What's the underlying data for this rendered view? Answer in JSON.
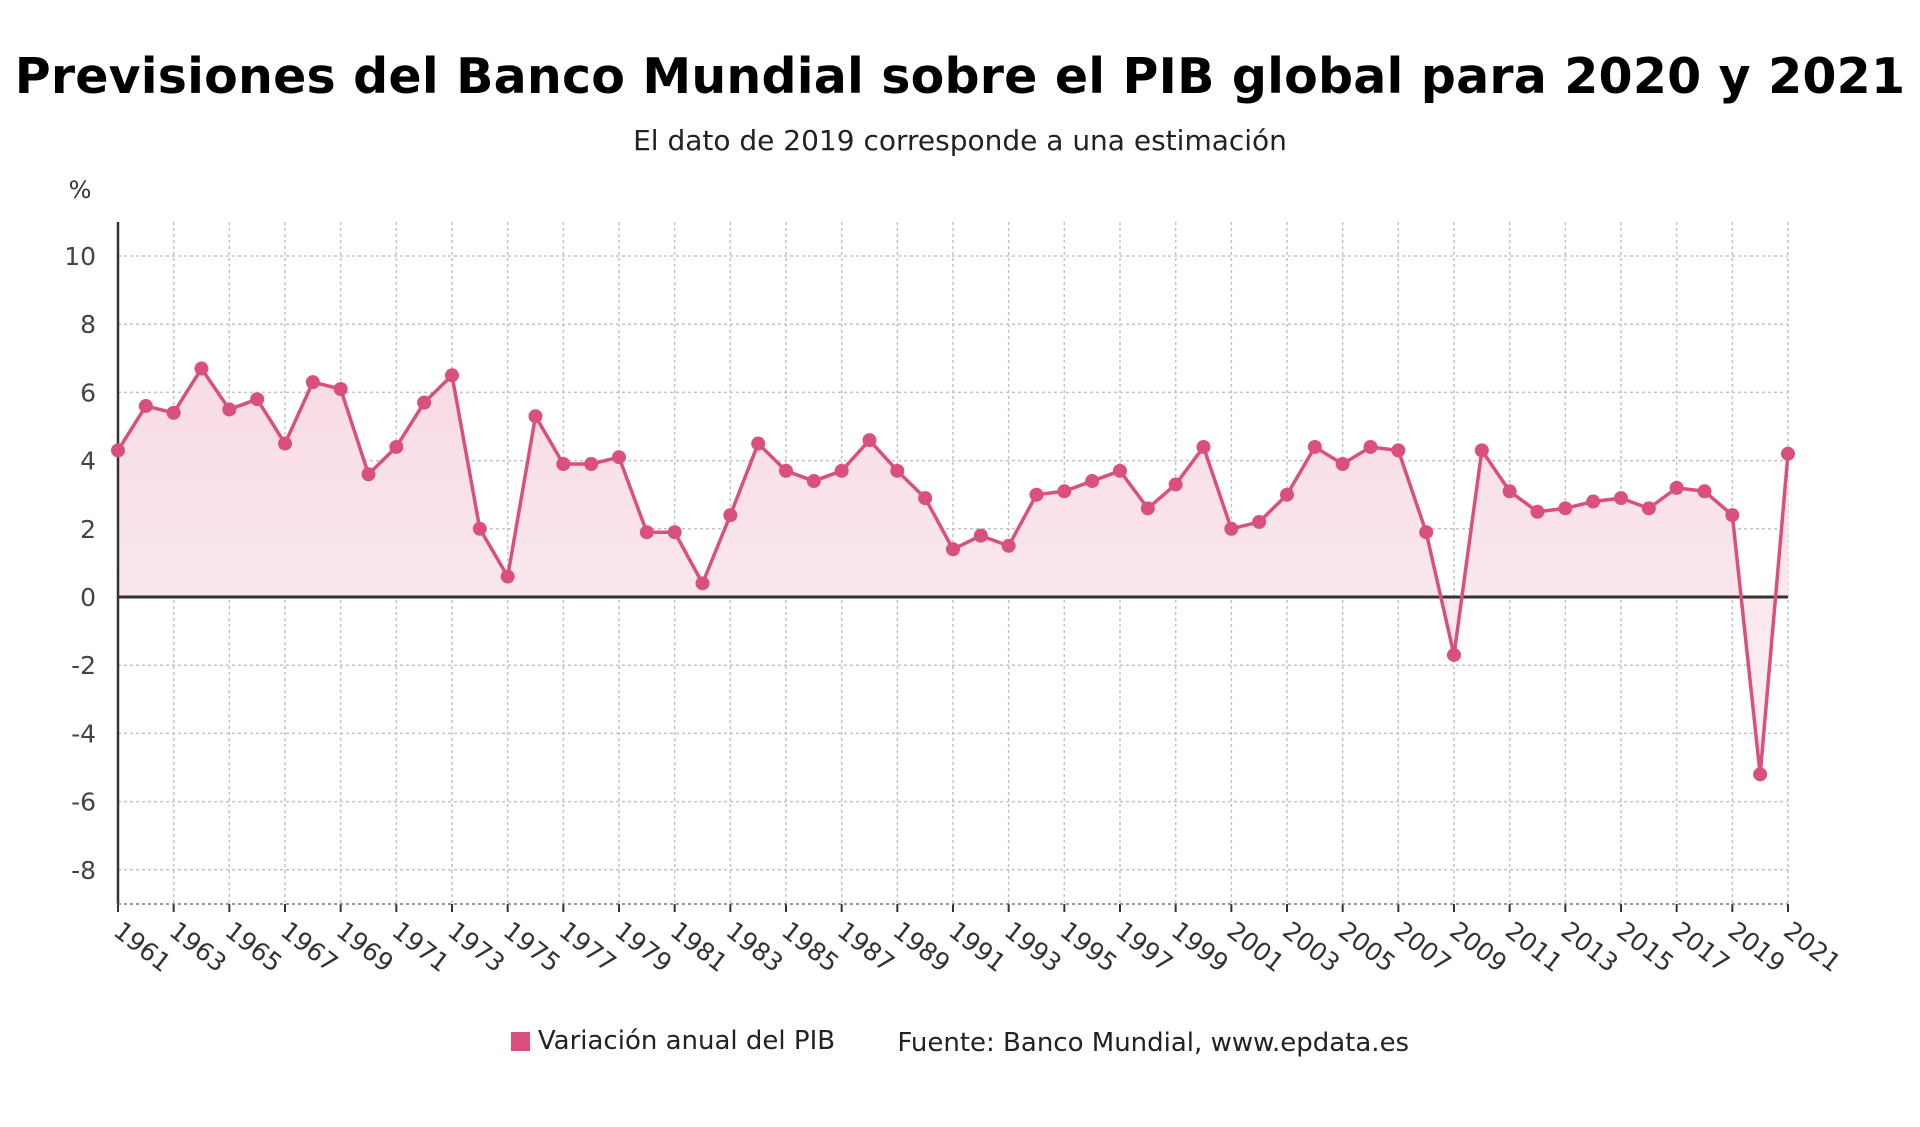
{
  "title": "Previsiones del Banco Mundial sobre el PIB global para 2020 y 2021",
  "subtitle": "El dato de 2019 corresponde a una estimación",
  "legend": {
    "series_label": "Variación anual del PIB",
    "source": "Fuente: Banco Mundial, www.epdata.es"
  },
  "colors": {
    "series": "#d9507c",
    "area_top": "#f8dbe6",
    "area_bottom": "#fdf1f5",
    "grid": "#c4c4c4",
    "zero": "#333333"
  },
  "chart_data": {
    "type": "line",
    "ylabel": "%",
    "ylim": [
      -9,
      10
    ],
    "y_ticks": [
      10,
      8,
      6,
      4,
      2,
      0,
      -2,
      -4,
      -6,
      -8
    ],
    "x_tick_labels": [
      "1961",
      "1963",
      "1965",
      "1967",
      "1969",
      "1971",
      "1973",
      "1975",
      "1977",
      "1979",
      "1981",
      "1983",
      "1985",
      "1987",
      "1989",
      "1991",
      "1993",
      "1995",
      "1997",
      "1999",
      "2001",
      "2003",
      "2005",
      "2007",
      "2009",
      "2011",
      "2013",
      "2015",
      "2017",
      "2019",
      "2021"
    ],
    "grid": true,
    "legend_position": "bottom",
    "series": [
      {
        "name": "Variación anual del PIB",
        "x": [
          1961,
          1962,
          1963,
          1964,
          1965,
          1966,
          1967,
          1968,
          1969,
          1970,
          1971,
          1972,
          1973,
          1974,
          1975,
          1976,
          1977,
          1978,
          1979,
          1980,
          1981,
          1982,
          1983,
          1984,
          1985,
          1986,
          1987,
          1988,
          1989,
          1990,
          1991,
          1992,
          1993,
          1994,
          1995,
          1996,
          1997,
          1998,
          1999,
          2000,
          2001,
          2002,
          2003,
          2004,
          2005,
          2006,
          2007,
          2008,
          2009,
          2010,
          2011,
          2012,
          2013,
          2014,
          2015,
          2016,
          2017,
          2018,
          2019,
          2020,
          2021
        ],
        "values": [
          4.3,
          5.6,
          5.4,
          6.7,
          5.5,
          5.8,
          4.5,
          6.3,
          6.1,
          3.6,
          4.4,
          5.7,
          6.5,
          2.0,
          0.6,
          5.3,
          3.9,
          3.9,
          4.1,
          1.9,
          1.9,
          0.4,
          2.4,
          4.5,
          3.7,
          3.4,
          3.7,
          4.6,
          3.7,
          2.9,
          1.4,
          1.8,
          1.5,
          3.0,
          3.1,
          3.4,
          3.7,
          2.6,
          3.3,
          4.4,
          2.0,
          2.2,
          3.0,
          4.4,
          3.9,
          4.4,
          4.3,
          1.9,
          -1.7,
          4.3,
          3.1,
          2.5,
          2.6,
          2.8,
          2.9,
          2.6,
          3.2,
          3.1,
          2.4,
          -5.2,
          4.2
        ]
      }
    ]
  }
}
